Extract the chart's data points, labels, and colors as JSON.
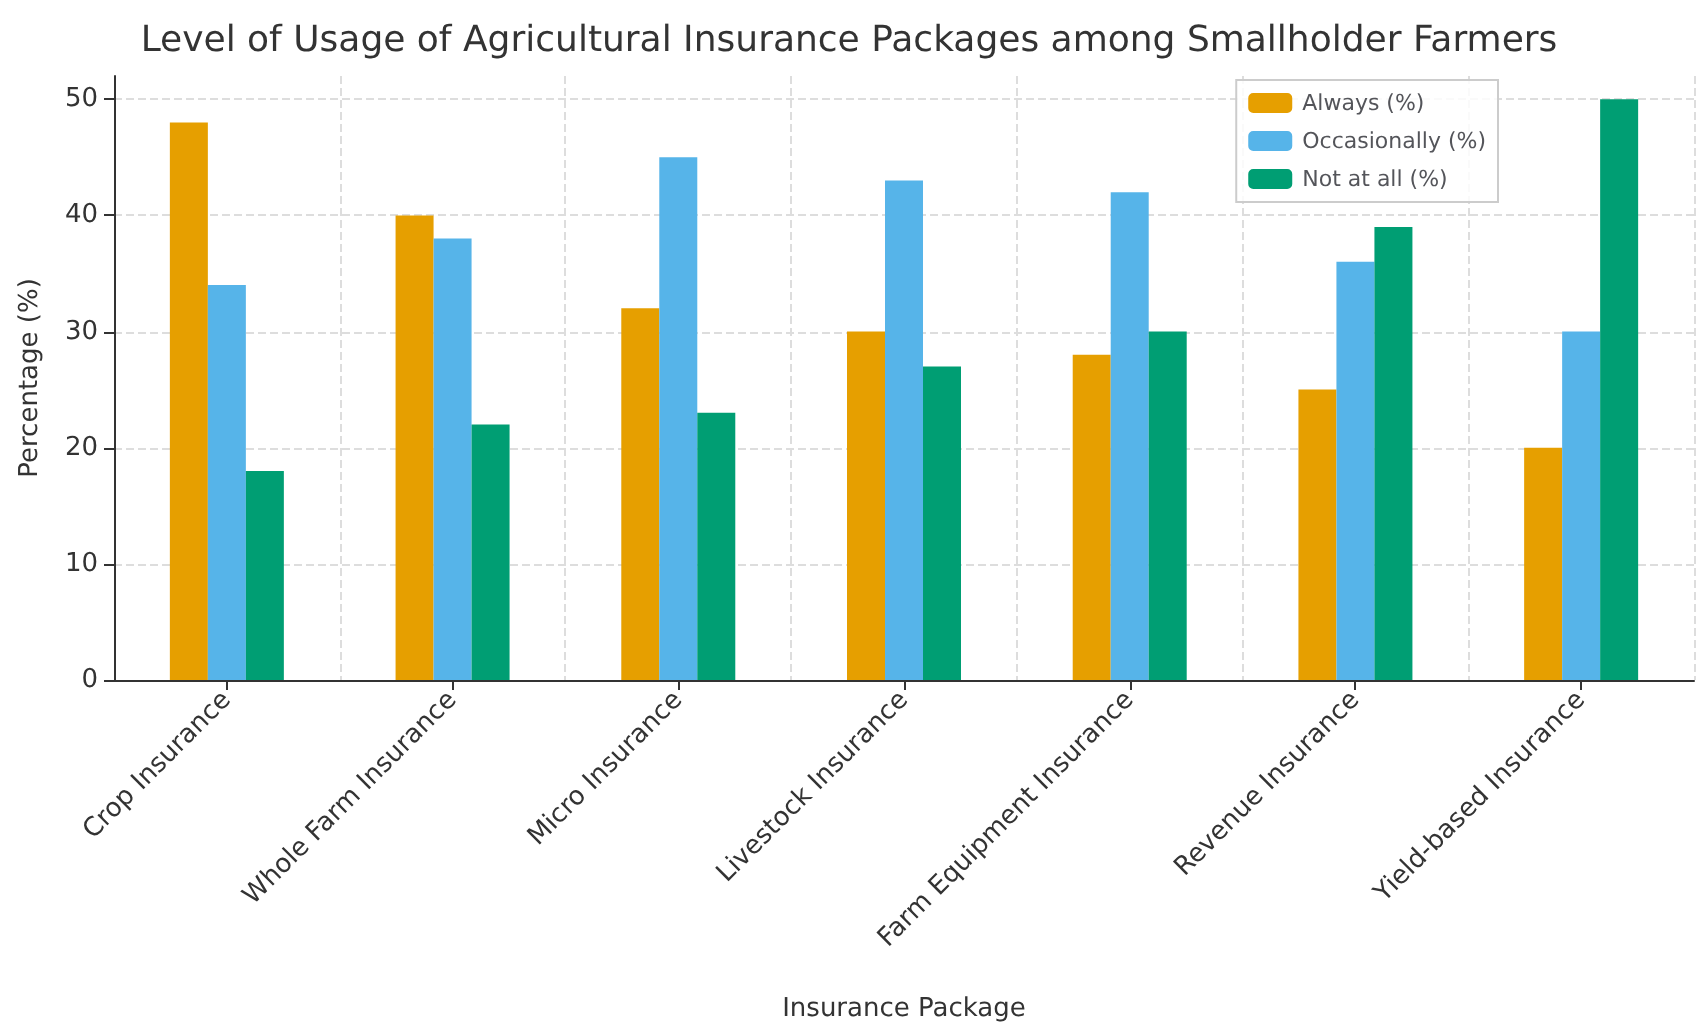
{
  "chart_data": {
    "type": "bar",
    "title": "Level of Usage of Agricultural Insurance Packages among Smallholder Farmers",
    "xlabel": "Insurance Package",
    "ylabel": "Percentage (%)",
    "categories": [
      "Crop Insurance",
      "Whole Farm Insurance",
      "Micro Insurance",
      "Livestock Insurance",
      "Farm Equipment Insurance",
      "Revenue Insurance",
      "Yield-based Insurance"
    ],
    "series": [
      {
        "name": "Always (%)",
        "color": "#e69f00",
        "values": [
          48,
          40,
          32,
          30,
          28,
          25,
          20
        ]
      },
      {
        "name": "Occasionally (%)",
        "color": "#56b4e9",
        "values": [
          34,
          38,
          45,
          43,
          42,
          36,
          30
        ]
      },
      {
        "name": "Not at all (%)",
        "color": "#009e73",
        "values": [
          18,
          22,
          23,
          27,
          30,
          39,
          50
        ]
      }
    ],
    "ylim": [
      0,
      52
    ],
    "yticks": [
      0,
      10,
      20,
      30,
      40,
      50
    ],
    "grid": true,
    "legend": "top right"
  }
}
